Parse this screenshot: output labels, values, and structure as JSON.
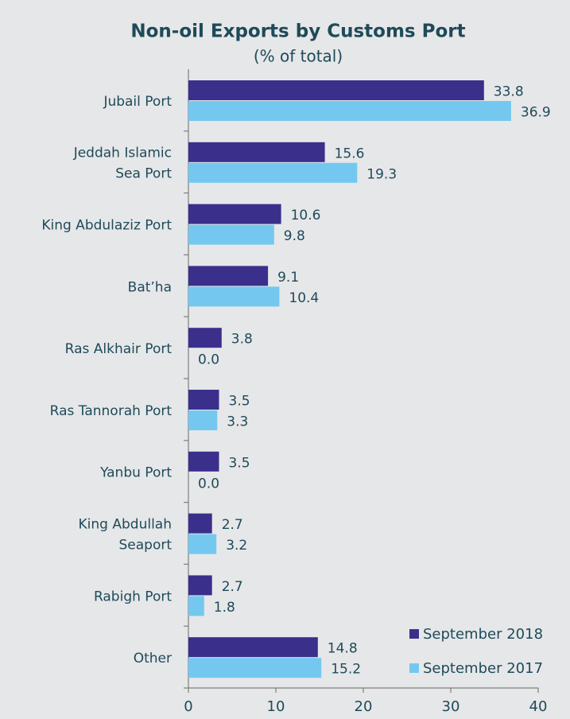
{
  "chart_data": {
    "type": "hbar",
    "title": "Non-oil Exports by Customs Port",
    "subtitle": "(% of total)",
    "categories": [
      "Jubail Port",
      "Jeddah Islamic\nSea Port",
      "King Abdulaziz Port",
      "Bat’ha",
      "Ras Alkhair Port",
      "Ras Tannorah Port",
      "Yanbu Port",
      "King Abdullah\nSeaport",
      "Rabigh Port",
      "Other"
    ],
    "series": [
      {
        "name": "September 2018",
        "color": "#3b2f8c",
        "values": [
          33.8,
          15.6,
          10.6,
          9.1,
          3.8,
          3.5,
          3.5,
          2.7,
          2.7,
          14.8
        ],
        "value_labels": [
          "33.8",
          "15.6",
          "10.6",
          "9.1",
          "3.8",
          "3.5",
          "3.5",
          "2.7",
          "2.7",
          "14.8"
        ]
      },
      {
        "name": "September 2017",
        "color": "#74c8f0",
        "values": [
          36.9,
          19.3,
          9.8,
          10.4,
          0,
          3.3,
          0,
          3.2,
          1.8,
          15.2
        ],
        "value_labels": [
          "36.9",
          "19.3",
          "9.8",
          "10.4",
          "0.0",
          "3.3",
          "0.0",
          "3.2",
          "1.8",
          "15.2"
        ]
      }
    ],
    "xlim": [
      0,
      40
    ],
    "xticks": [
      0,
      10,
      20,
      30,
      40
    ],
    "grid": false,
    "legend": "lower right"
  }
}
